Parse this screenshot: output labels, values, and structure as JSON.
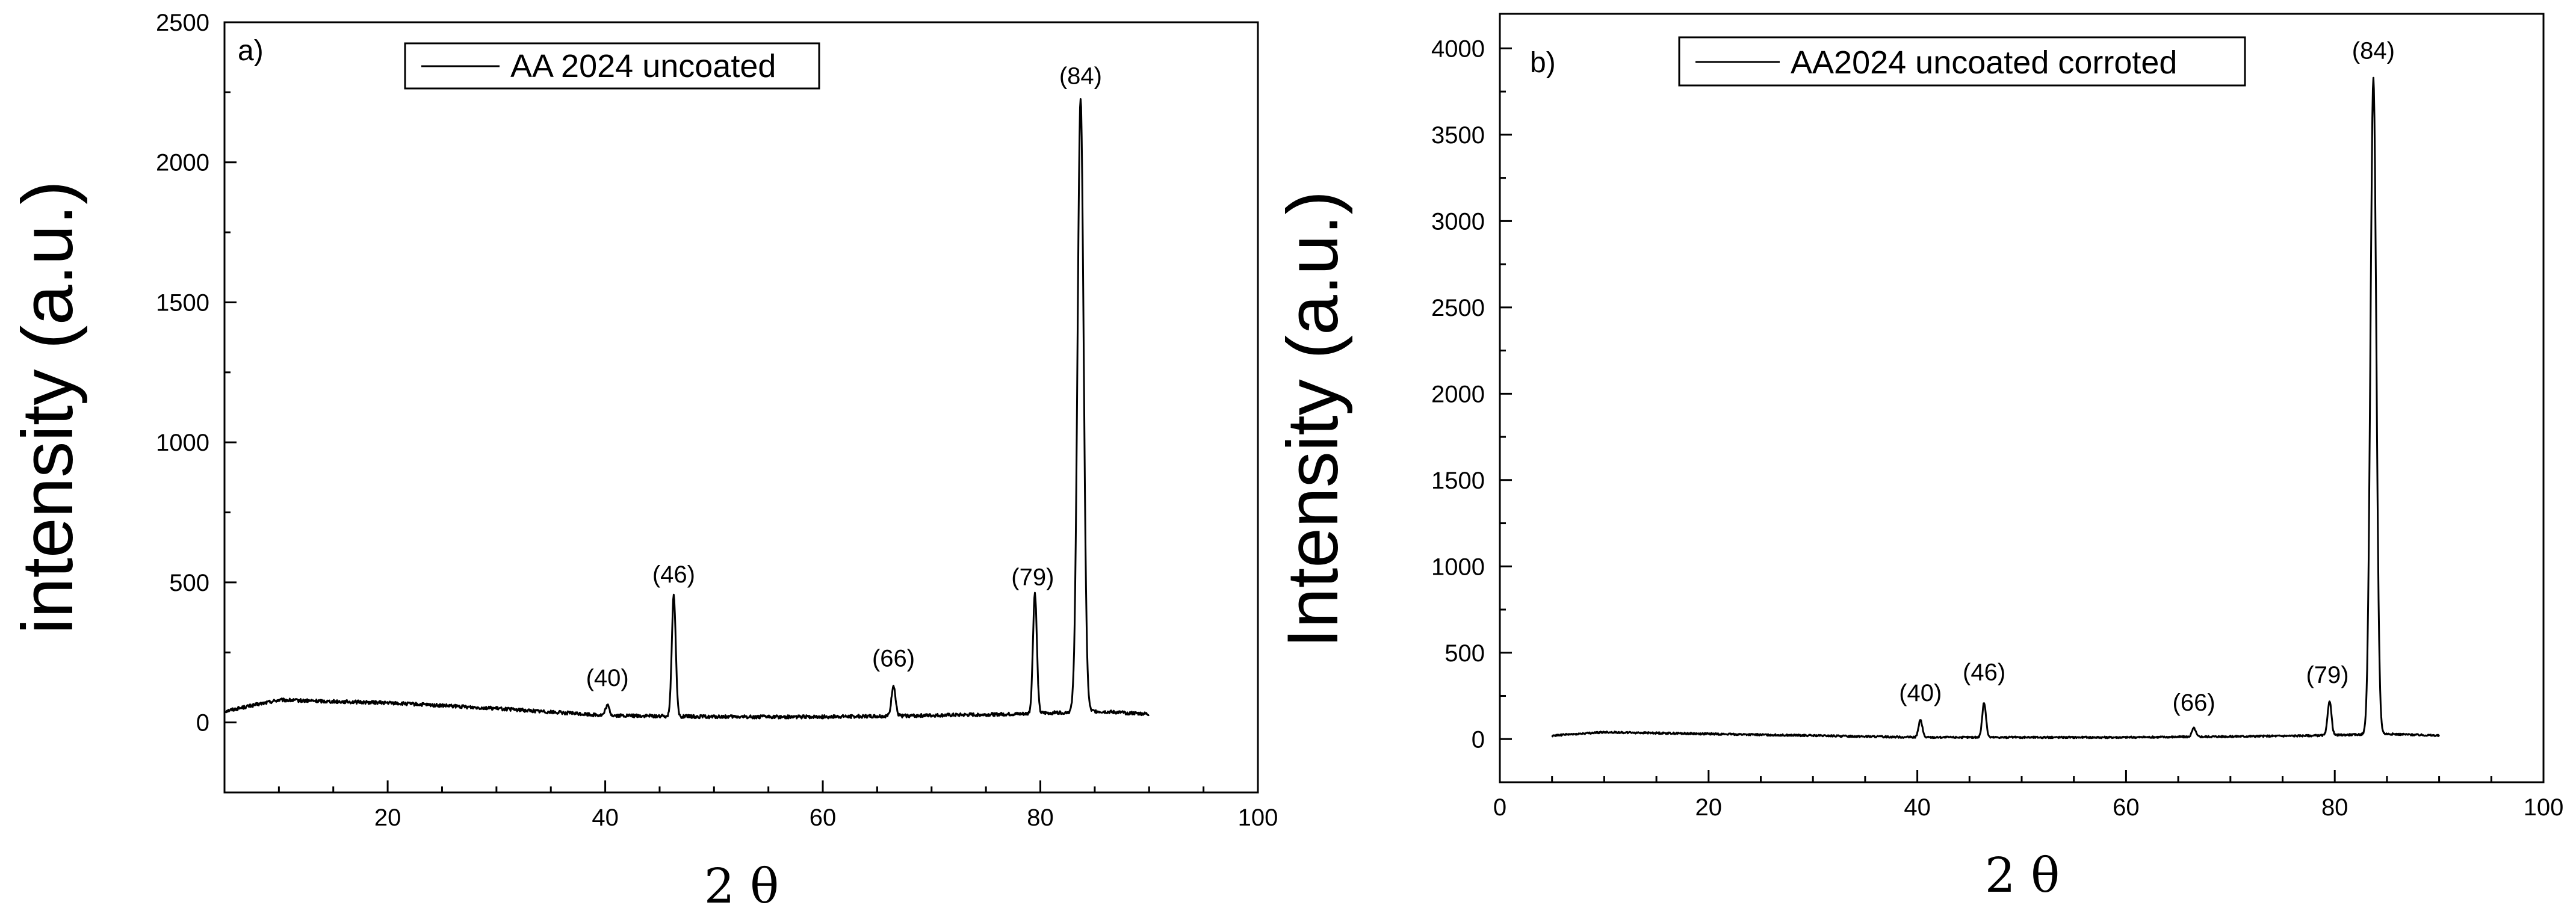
{
  "chart_data": [
    {
      "type": "line",
      "panel_label": "a)",
      "xlabel": "2 θ",
      "ylabel": "intensity (a.u.)",
      "xlim": [
        5,
        100
      ],
      "ylim": [
        -250,
        2500
      ],
      "x_ticks": [
        20,
        40,
        60,
        80,
        100
      ],
      "y_ticks": [
        0,
        500,
        1000,
        1500,
        2000,
        2500
      ],
      "legend": "AA 2024 uncoated",
      "legend_position": "top-left",
      "series": [
        {
          "name": "AA 2024 uncoated",
          "baseline": [
            [
              5,
              40
            ],
            [
              10,
              80
            ],
            [
              20,
              70
            ],
            [
              30,
              50
            ],
            [
              40,
              25
            ],
            [
              50,
              20
            ],
            [
              60,
              20
            ],
            [
              70,
              25
            ],
            [
              78,
              30
            ],
            [
              85,
              40
            ],
            [
              90,
              30
            ]
          ],
          "peaks": [
            [
              40.2,
              35
            ],
            [
              46.3,
              430
            ],
            [
              66.5,
              110
            ],
            [
              79.5,
              430
            ],
            [
              83.7,
              2190
            ]
          ]
        }
      ],
      "peak_labels": [
        {
          "text": "(40)",
          "x": 40.2,
          "y": 130
        },
        {
          "text": "(46)",
          "x": 46.3,
          "y": 500
        },
        {
          "text": "(66)",
          "x": 66.5,
          "y": 200
        },
        {
          "text": "(79)",
          "x": 79.3,
          "y": 490
        },
        {
          "text": "(84)",
          "x": 83.7,
          "y": 2280
        }
      ]
    },
    {
      "type": "line",
      "panel_label": "b)",
      "xlabel": "2 θ",
      "ylabel": "Intensity (a.u.)",
      "xlim": [
        0,
        100
      ],
      "ylim": [
        -250,
        4200
      ],
      "x_ticks": [
        0,
        20,
        40,
        60,
        80,
        100
      ],
      "y_ticks": [
        0,
        500,
        1000,
        1500,
        2000,
        2500,
        3000,
        3500,
        4000
      ],
      "legend": "AA2024 uncoated corroted",
      "legend_position": "top-left",
      "series": [
        {
          "name": "AA2024 uncoated corroted",
          "baseline": [
            [
              5,
              20
            ],
            [
              10,
              40
            ],
            [
              20,
              30
            ],
            [
              30,
              20
            ],
            [
              40,
              10
            ],
            [
              50,
              10
            ],
            [
              60,
              10
            ],
            [
              70,
              15
            ],
            [
              78,
              20
            ],
            [
              85,
              30
            ],
            [
              90,
              20
            ]
          ],
          "peaks": [
            [
              40.3,
              100
            ],
            [
              46.4,
              200
            ],
            [
              66.5,
              50
            ],
            [
              79.5,
              200
            ],
            [
              83.7,
              3800
            ]
          ]
        }
      ],
      "peak_labels": [
        {
          "text": "(40)",
          "x": 40.3,
          "y": 220
        },
        {
          "text": "(46)",
          "x": 46.4,
          "y": 340
        },
        {
          "text": "(66)",
          "x": 66.5,
          "y": 165
        },
        {
          "text": "(79)",
          "x": 79.3,
          "y": 325
        },
        {
          "text": "(84)",
          "x": 83.7,
          "y": 3940
        }
      ]
    }
  ]
}
